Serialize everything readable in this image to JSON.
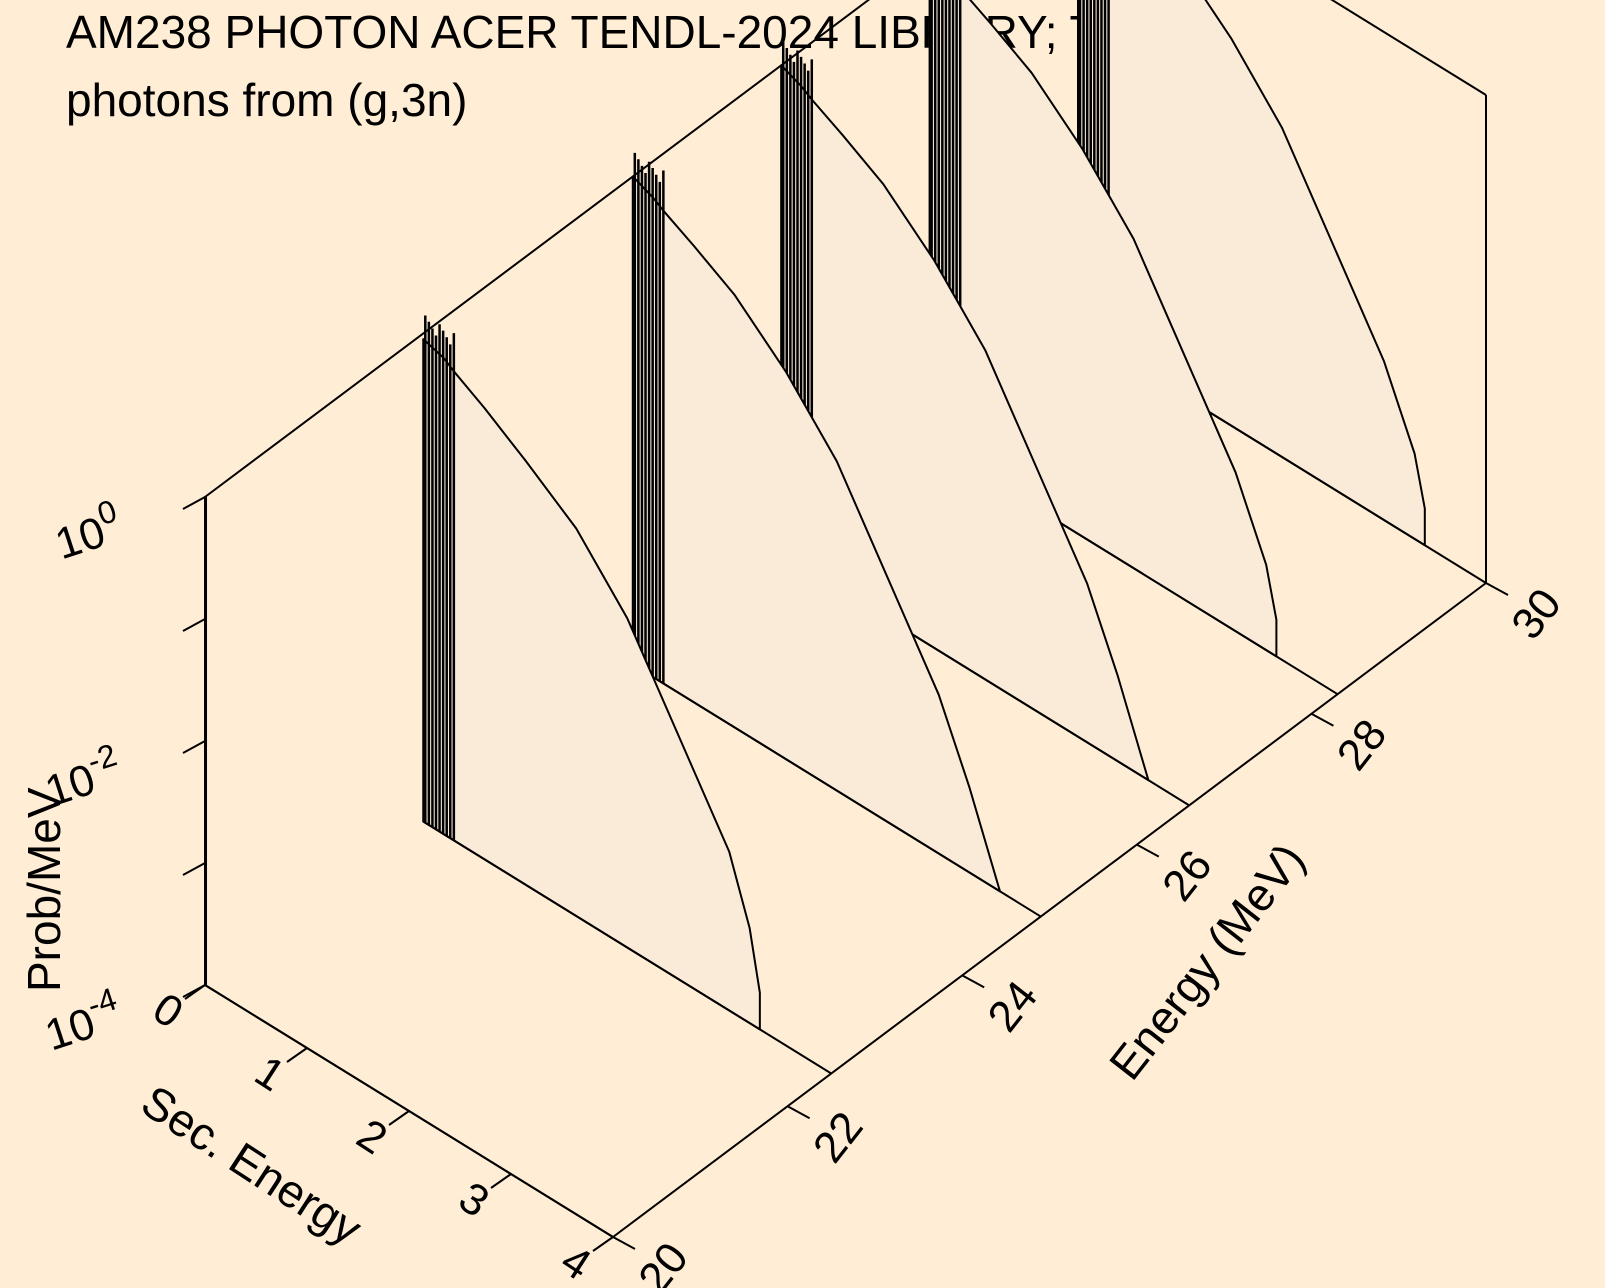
{
  "chart_data": {
    "type": "line",
    "title": "AM238 PHOTON ACER TENDL-2024 LIBRARY; T=0.K",
    "subtitle": "photons from (g,3n)",
    "xlabel": "Sec. Energy",
    "ylabel": "Energy (MeV)",
    "zlabel": "Prob/MeV",
    "z_scale": "log",
    "xlim": [
      0,
      4
    ],
    "ylim": [
      20,
      30
    ],
    "zlim": [
      0.0001,
      1
    ],
    "x_ticks": [
      "0",
      "1",
      "2",
      "3",
      "4"
    ],
    "y_ticks": [
      "20",
      "22",
      "24",
      "26",
      "28",
      "30"
    ],
    "z_ticks": [
      {
        "base": "10",
        "exp": "-4"
      },
      {
        "base": "10",
        "exp": "-2"
      },
      {
        "base": "10",
        "exp": "0"
      }
    ],
    "series": [
      {
        "energy": 20.0,
        "x": [
          0.0,
          0.01
        ],
        "p": [
          1.0,
          1.0
        ]
      },
      {
        "energy": 22.5,
        "x": [
          0.0,
          0.2,
          0.3,
          0.6,
          1.0,
          1.5,
          2.0,
          2.5,
          3.0,
          3.2,
          3.3
        ],
        "p": [
          0.9,
          0.8,
          0.7,
          0.5,
          0.3,
          0.15,
          0.05,
          0.01,
          0.002,
          0.0006,
          0.0002
        ]
      },
      {
        "energy": 24.9,
        "x": [
          0.0,
          0.2,
          0.3,
          0.6,
          1.0,
          1.5,
          2.0,
          2.5,
          3.0,
          3.3,
          3.6
        ],
        "p": [
          1.0,
          0.85,
          0.75,
          0.55,
          0.35,
          0.15,
          0.05,
          0.01,
          0.002,
          0.0005,
          0.0001
        ]
      },
      {
        "energy": 26.6,
        "x": [
          0.0,
          0.2,
          0.3,
          0.6,
          1.0,
          1.5,
          2.0,
          2.5,
          3.0,
          3.3,
          3.6
        ],
        "p": [
          1.0,
          0.85,
          0.75,
          0.55,
          0.35,
          0.15,
          0.05,
          0.01,
          0.002,
          0.0005,
          0.0001
        ]
      },
      {
        "energy": 28.3,
        "x": [
          0.0,
          0.2,
          0.3,
          0.6,
          1.0,
          1.5,
          2.0,
          2.5,
          3.0,
          3.3,
          3.4
        ],
        "p": [
          1.0,
          0.85,
          0.75,
          0.55,
          0.35,
          0.15,
          0.05,
          0.01,
          0.002,
          0.0005,
          0.0002
        ]
      },
      {
        "energy": 30.0,
        "x": [
          0.0,
          0.2,
          0.3,
          0.6,
          1.0,
          1.5,
          2.0,
          2.5,
          3.0,
          3.3,
          3.4
        ],
        "p": [
          1.0,
          0.85,
          0.75,
          0.55,
          0.35,
          0.15,
          0.05,
          0.01,
          0.002,
          0.0005,
          0.0002
        ]
      }
    ],
    "colors": {
      "background": "#FFEED5",
      "fill": "#FAEBD9",
      "line": "#000000"
    }
  }
}
